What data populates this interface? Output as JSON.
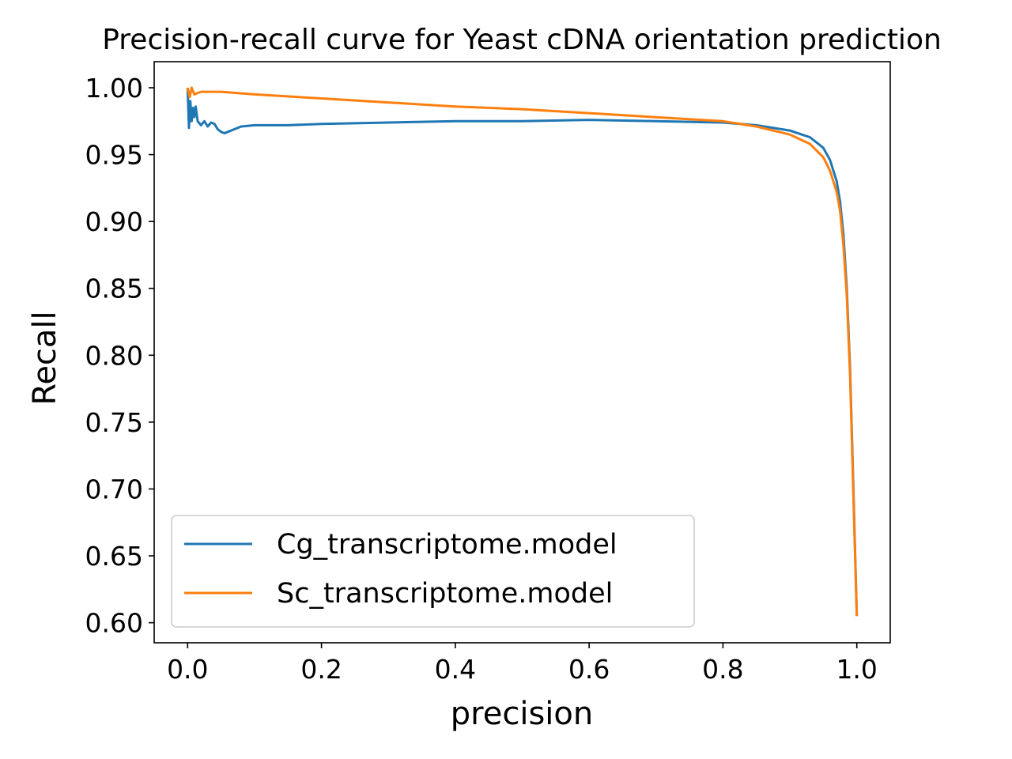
{
  "chart_data": {
    "type": "line",
    "title": "Precision-recall curve for Yeast cDNA orientation prediction",
    "xlabel": "precision",
    "ylabel": "Recall",
    "xlim": [
      -0.05,
      1.05
    ],
    "ylim": [
      0.585,
      1.0195
    ],
    "xticks": [
      "0.0",
      "0.2",
      "0.4",
      "0.6",
      "0.8",
      "1.0"
    ],
    "yticks": [
      "0.60",
      "0.65",
      "0.70",
      "0.75",
      "0.80",
      "0.85",
      "0.90",
      "0.95",
      "1.00"
    ],
    "grid": false,
    "legend_position": "lower-left",
    "series": [
      {
        "name": "Cg_transcriptome.model",
        "color": "#1f77b4",
        "points": [
          [
            0.0,
            1.0
          ],
          [
            0.002,
            0.97
          ],
          [
            0.004,
            0.99
          ],
          [
            0.006,
            0.975
          ],
          [
            0.008,
            0.985
          ],
          [
            0.01,
            0.978
          ],
          [
            0.012,
            0.986
          ],
          [
            0.015,
            0.975
          ],
          [
            0.02,
            0.972
          ],
          [
            0.025,
            0.975
          ],
          [
            0.03,
            0.971
          ],
          [
            0.035,
            0.974
          ],
          [
            0.04,
            0.973
          ],
          [
            0.045,
            0.969
          ],
          [
            0.05,
            0.967
          ],
          [
            0.055,
            0.966
          ],
          [
            0.06,
            0.967
          ],
          [
            0.07,
            0.969
          ],
          [
            0.08,
            0.971
          ],
          [
            0.1,
            0.972
          ],
          [
            0.15,
            0.972
          ],
          [
            0.2,
            0.973
          ],
          [
            0.3,
            0.974
          ],
          [
            0.4,
            0.975
          ],
          [
            0.5,
            0.975
          ],
          [
            0.6,
            0.976
          ],
          [
            0.7,
            0.975
          ],
          [
            0.8,
            0.974
          ],
          [
            0.85,
            0.972
          ],
          [
            0.9,
            0.968
          ],
          [
            0.93,
            0.963
          ],
          [
            0.95,
            0.955
          ],
          [
            0.96,
            0.946
          ],
          [
            0.97,
            0.93
          ],
          [
            0.975,
            0.915
          ],
          [
            0.98,
            0.89
          ],
          [
            0.985,
            0.85
          ],
          [
            0.99,
            0.79
          ],
          [
            0.995,
            0.7
          ],
          [
            1.0,
            0.605
          ]
        ]
      },
      {
        "name": "Sc_transcriptome.model",
        "color": "#ff7f0e",
        "points": [
          [
            0.0,
            1.0
          ],
          [
            0.003,
            0.993
          ],
          [
            0.006,
            1.0
          ],
          [
            0.01,
            0.995
          ],
          [
            0.02,
            0.997
          ],
          [
            0.05,
            0.997
          ],
          [
            0.1,
            0.995
          ],
          [
            0.2,
            0.992
          ],
          [
            0.3,
            0.989
          ],
          [
            0.4,
            0.986
          ],
          [
            0.5,
            0.984
          ],
          [
            0.6,
            0.981
          ],
          [
            0.7,
            0.978
          ],
          [
            0.8,
            0.975
          ],
          [
            0.85,
            0.971
          ],
          [
            0.9,
            0.965
          ],
          [
            0.93,
            0.958
          ],
          [
            0.95,
            0.948
          ],
          [
            0.96,
            0.938
          ],
          [
            0.97,
            0.922
          ],
          [
            0.975,
            0.908
          ],
          [
            0.98,
            0.882
          ],
          [
            0.985,
            0.845
          ],
          [
            0.99,
            0.785
          ],
          [
            0.995,
            0.695
          ],
          [
            1.0,
            0.605
          ]
        ]
      }
    ]
  }
}
